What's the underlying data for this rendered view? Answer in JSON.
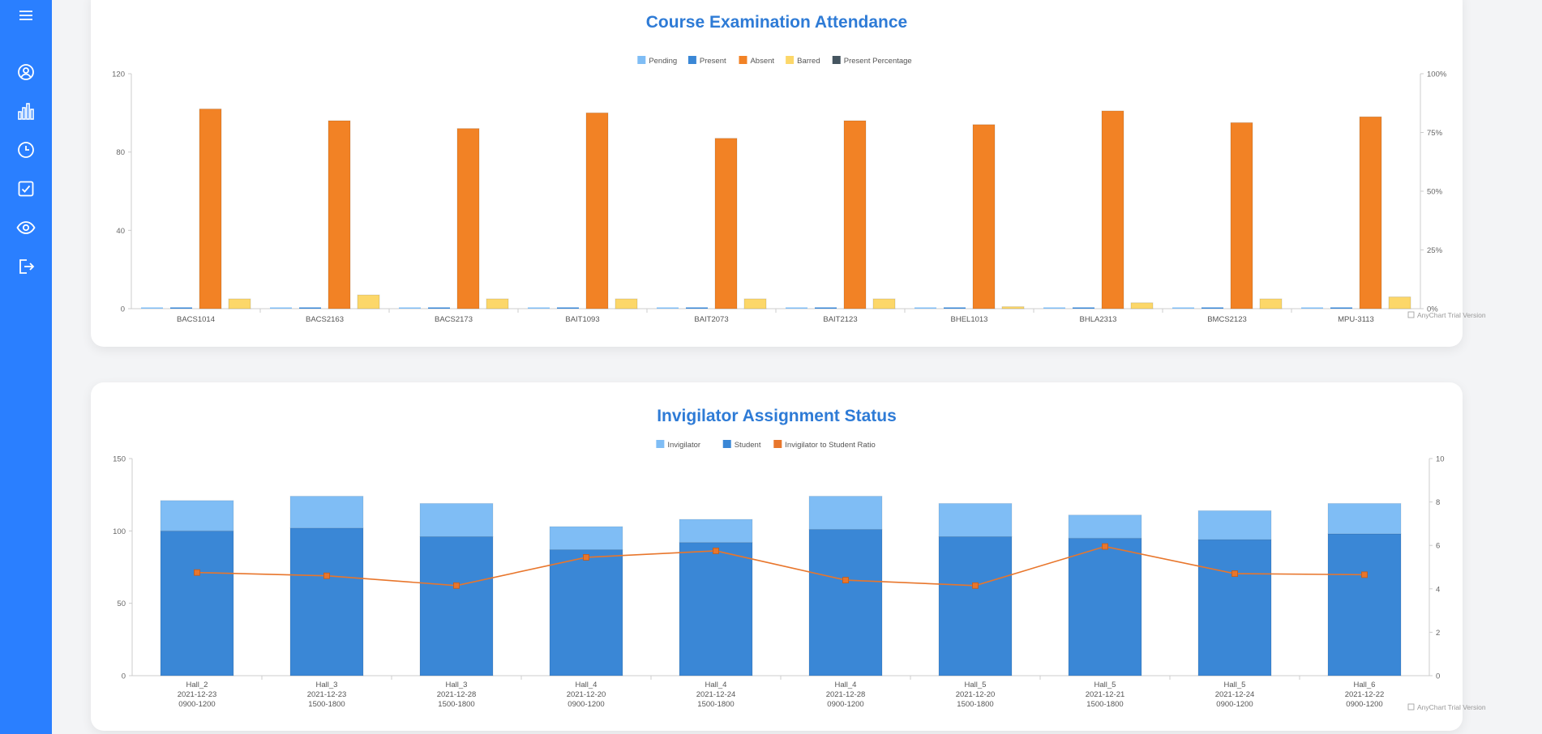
{
  "sidebar": {
    "accent": "#2a7fff",
    "items": [
      {
        "icon": "menu-icon"
      },
      {
        "icon": "user-circle-icon"
      },
      {
        "icon": "bar-chart-icon"
      },
      {
        "icon": "clock-icon"
      },
      {
        "icon": "checkbox-icon"
      },
      {
        "icon": "eye-icon"
      },
      {
        "icon": "logout-icon"
      }
    ]
  },
  "charts": {
    "attendance_title": "Course Examination Attendance",
    "invigilator_title": "Invigilator Assignment Status",
    "watermark": "AnyChart Trial Version"
  },
  "chart_data": [
    {
      "type": "bar",
      "title": "Course Examination Attendance",
      "categories": [
        "BACS1014",
        "BACS2163",
        "BACS2173",
        "BAIT1093",
        "BAIT2073",
        "BAIT2123",
        "BHEL1013",
        "BHLA2313",
        "BMCS2123",
        "MPU-3113"
      ],
      "series": [
        {
          "name": "Pending",
          "color": "#7fbdf5",
          "values": [
            0,
            0,
            0,
            0,
            0,
            0,
            0,
            0,
            0,
            0
          ]
        },
        {
          "name": "Present",
          "color": "#3a87d6",
          "values": [
            0,
            0,
            0,
            0,
            0,
            0,
            0,
            0,
            0,
            0
          ]
        },
        {
          "name": "Absent",
          "color": "#f28225",
          "values": [
            102,
            96,
            92,
            100,
            87,
            96,
            94,
            101,
            95,
            98
          ]
        },
        {
          "name": "Barred",
          "color": "#fcd769",
          "values": [
            5,
            7,
            5,
            5,
            5,
            5,
            1,
            3,
            5,
            6
          ]
        },
        {
          "name": "Present Percentage",
          "color": "#455560",
          "axis": "right",
          "values": [
            0,
            0,
            0,
            0,
            0,
            0,
            0,
            0,
            0,
            0
          ]
        }
      ],
      "ylim": [
        0,
        120
      ],
      "yticks": [
        "0",
        "40",
        "80",
        "120"
      ],
      "ytick_values": [
        0,
        40,
        80,
        120
      ],
      "y2lim": [
        0,
        100
      ],
      "y2ticks": [
        "0%",
        "25%",
        "50%",
        "75%",
        "100%"
      ],
      "y2tick_values": [
        0,
        25,
        50,
        75,
        100
      ],
      "legend": "top-center",
      "grid": false
    },
    {
      "type": "bar",
      "stacked": true,
      "title": "Invigilator Assignment Status",
      "categories": [
        [
          "Hall_2",
          "2021-12-23",
          "0900-1200"
        ],
        [
          "Hall_3",
          "2021-12-23",
          "1500-1800"
        ],
        [
          "Hall_3",
          "2021-12-28",
          "1500-1800"
        ],
        [
          "Hall_4",
          "2021-12-20",
          "0900-1200"
        ],
        [
          "Hall_4",
          "2021-12-24",
          "1500-1800"
        ],
        [
          "Hall_4",
          "2021-12-28",
          "0900-1200"
        ],
        [
          "Hall_5",
          "2021-12-20",
          "1500-1800"
        ],
        [
          "Hall_5",
          "2021-12-21",
          "1500-1800"
        ],
        [
          "Hall_5",
          "2021-12-24",
          "0900-1200"
        ],
        [
          "Hall_6",
          "2021-12-22",
          "0900-1200"
        ]
      ],
      "series": [
        {
          "name": "Invigilator",
          "color": "#7fbdf5",
          "values": [
            21,
            22,
            23,
            16,
            16,
            23,
            23,
            16,
            20,
            21
          ]
        },
        {
          "name": "Student",
          "color": "#3a87d6",
          "values": [
            100,
            102,
            96,
            87,
            92,
            101,
            96,
            95,
            94,
            98
          ]
        },
        {
          "name": "Invigilator to Student Ratio",
          "color": "#e8762c",
          "type": "line",
          "axis": "right",
          "values": [
            4.75,
            4.6,
            4.15,
            5.45,
            5.75,
            4.4,
            4.15,
            5.95,
            4.7,
            4.65
          ]
        }
      ],
      "ylim": [
        0,
        150
      ],
      "yticks": [
        "0",
        "50",
        "100",
        "150"
      ],
      "ytick_values": [
        0,
        50,
        100,
        150
      ],
      "y2lim": [
        0,
        10
      ],
      "y2ticks": [
        "0",
        "2",
        "4",
        "6",
        "8",
        "10"
      ],
      "y2tick_values": [
        0,
        2,
        4,
        6,
        8,
        10
      ],
      "legend": "top-center",
      "grid": false
    }
  ]
}
